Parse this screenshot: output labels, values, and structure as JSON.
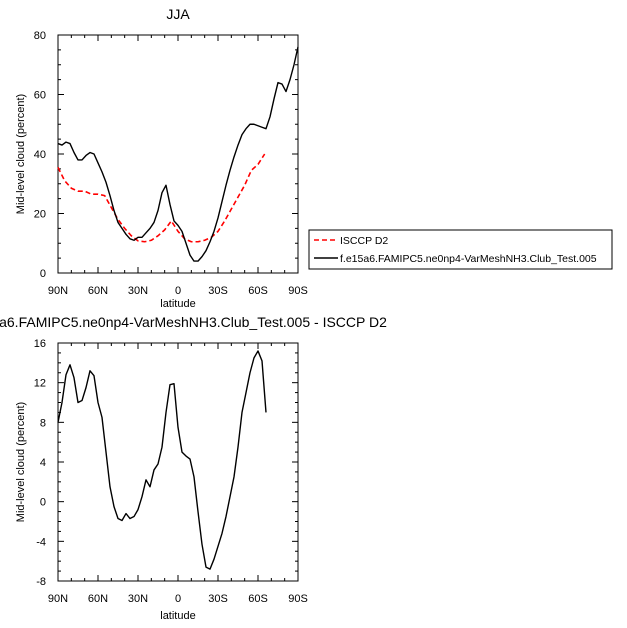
{
  "chart_data": [
    {
      "type": "line",
      "title": "JJA",
      "xlabel": "latitude",
      "ylabel": "Mid-level cloud (percent)",
      "xlim": [
        -90,
        90
      ],
      "ylim": [
        0,
        80
      ],
      "x_ticks": [
        "90N",
        "60N",
        "30N",
        "0",
        "30S",
        "60S",
        "90S"
      ],
      "y_ticks": [
        "0",
        "20",
        "40",
        "60",
        "80"
      ],
      "legend_position": "right",
      "series": [
        {
          "name": "ISCCP D2",
          "color": "#ff0000",
          "style": "dashed",
          "x": [
            -90,
            -85,
            -80,
            -75,
            -70,
            -65,
            -60,
            -55,
            -50,
            -45,
            -40,
            -35,
            -30,
            -25,
            -20,
            -15,
            -10,
            -5,
            0,
            5,
            10,
            15,
            20,
            25,
            30,
            35,
            40,
            45,
            50,
            55,
            60,
            65
          ],
          "y": [
            35.5,
            31,
            28.5,
            27.5,
            27.5,
            26.5,
            26.5,
            26,
            22,
            18,
            15,
            12.5,
            10.8,
            10.5,
            11,
            12.5,
            14.5,
            17.5,
            14,
            11.5,
            10.5,
            10.5,
            11,
            12,
            14,
            17.5,
            21.5,
            25.5,
            29.5,
            34.5,
            36.5,
            40
          ]
        },
        {
          "name": "f.e15a6.FAMIPC5.ne0np4-VarMeshNH3.Club_Test.005",
          "color": "#000000",
          "style": "solid",
          "x": [
            -90,
            -87,
            -84,
            -81,
            -78,
            -75,
            -72,
            -69,
            -66,
            -63,
            -60,
            -57,
            -54,
            -51,
            -48,
            -45,
            -42,
            -39,
            -36,
            -33,
            -30,
            -27,
            -24,
            -21,
            -18,
            -15,
            -12,
            -9,
            -6,
            -3,
            0,
            3,
            6,
            9,
            12,
            15,
            18,
            21,
            24,
            27,
            30,
            33,
            36,
            39,
            42,
            45,
            48,
            51,
            54,
            57,
            60,
            63,
            66,
            69,
            72,
            75,
            78,
            81,
            84,
            87,
            90
          ],
          "y": [
            43.5,
            43,
            44,
            43.5,
            40.5,
            38,
            38,
            39.5,
            40.5,
            40,
            37,
            34,
            30.5,
            26,
            21,
            17,
            15,
            13,
            11.5,
            11,
            12,
            12,
            13.5,
            15,
            17,
            21,
            27,
            29.5,
            23,
            17.5,
            16,
            14,
            10,
            6,
            4,
            4,
            5.5,
            7.5,
            10.5,
            14,
            18.5,
            24,
            29.5,
            34.5,
            39,
            43,
            46.5,
            48.5,
            50,
            50,
            49.5,
            49,
            48.5,
            52.5,
            58.5,
            64,
            63.5,
            61,
            65,
            70,
            76
          ]
        }
      ]
    },
    {
      "type": "line",
      "title": "a6.FAMIPC5.ne0np4-VarMeshNH3.Club_Test.005 - ISCCP D2",
      "xlabel": "latitude",
      "ylabel": "Mid-level cloud (percent)",
      "xlim": [
        -90,
        90
      ],
      "ylim": [
        -8,
        16
      ],
      "x_ticks": [
        "90N",
        "60N",
        "30N",
        "0",
        "30S",
        "60S",
        "90S"
      ],
      "y_ticks": [
        "-8",
        "-4",
        "0",
        "4",
        "8",
        "12",
        "16"
      ],
      "series": [
        {
          "color": "#000000",
          "style": "solid",
          "x": [
            -90,
            -87,
            -84,
            -81,
            -78,
            -75,
            -72,
            -69,
            -66,
            -63,
            -60,
            -57,
            -54,
            -51,
            -48,
            -45,
            -42,
            -39,
            -36,
            -33,
            -30,
            -27,
            -24,
            -21,
            -18,
            -15,
            -12,
            -9,
            -6,
            -3,
            0,
            3,
            6,
            9,
            12,
            15,
            18,
            21,
            24,
            27,
            30,
            33,
            36,
            39,
            42,
            45,
            48,
            51,
            54,
            57,
            60,
            63,
            66
          ],
          "y": [
            8,
            10,
            12.8,
            13.8,
            12.5,
            10,
            10.2,
            11.5,
            13.2,
            12.7,
            10,
            8.5,
            5,
            1.5,
            -0.5,
            -1.7,
            -1.9,
            -1.2,
            -1.7,
            -1.5,
            -0.8,
            0.5,
            2.2,
            1.5,
            3.2,
            3.8,
            5.5,
            9,
            11.8,
            11.9,
            7.5,
            5,
            4.6,
            4.3,
            2.5,
            -1,
            -4.3,
            -6.6,
            -6.8,
            -5.8,
            -4.5,
            -3.2,
            -1.5,
            0.5,
            2.5,
            5.5,
            9,
            11,
            13,
            14.5,
            15.2,
            14.2,
            9
          ]
        }
      ]
    }
  ]
}
